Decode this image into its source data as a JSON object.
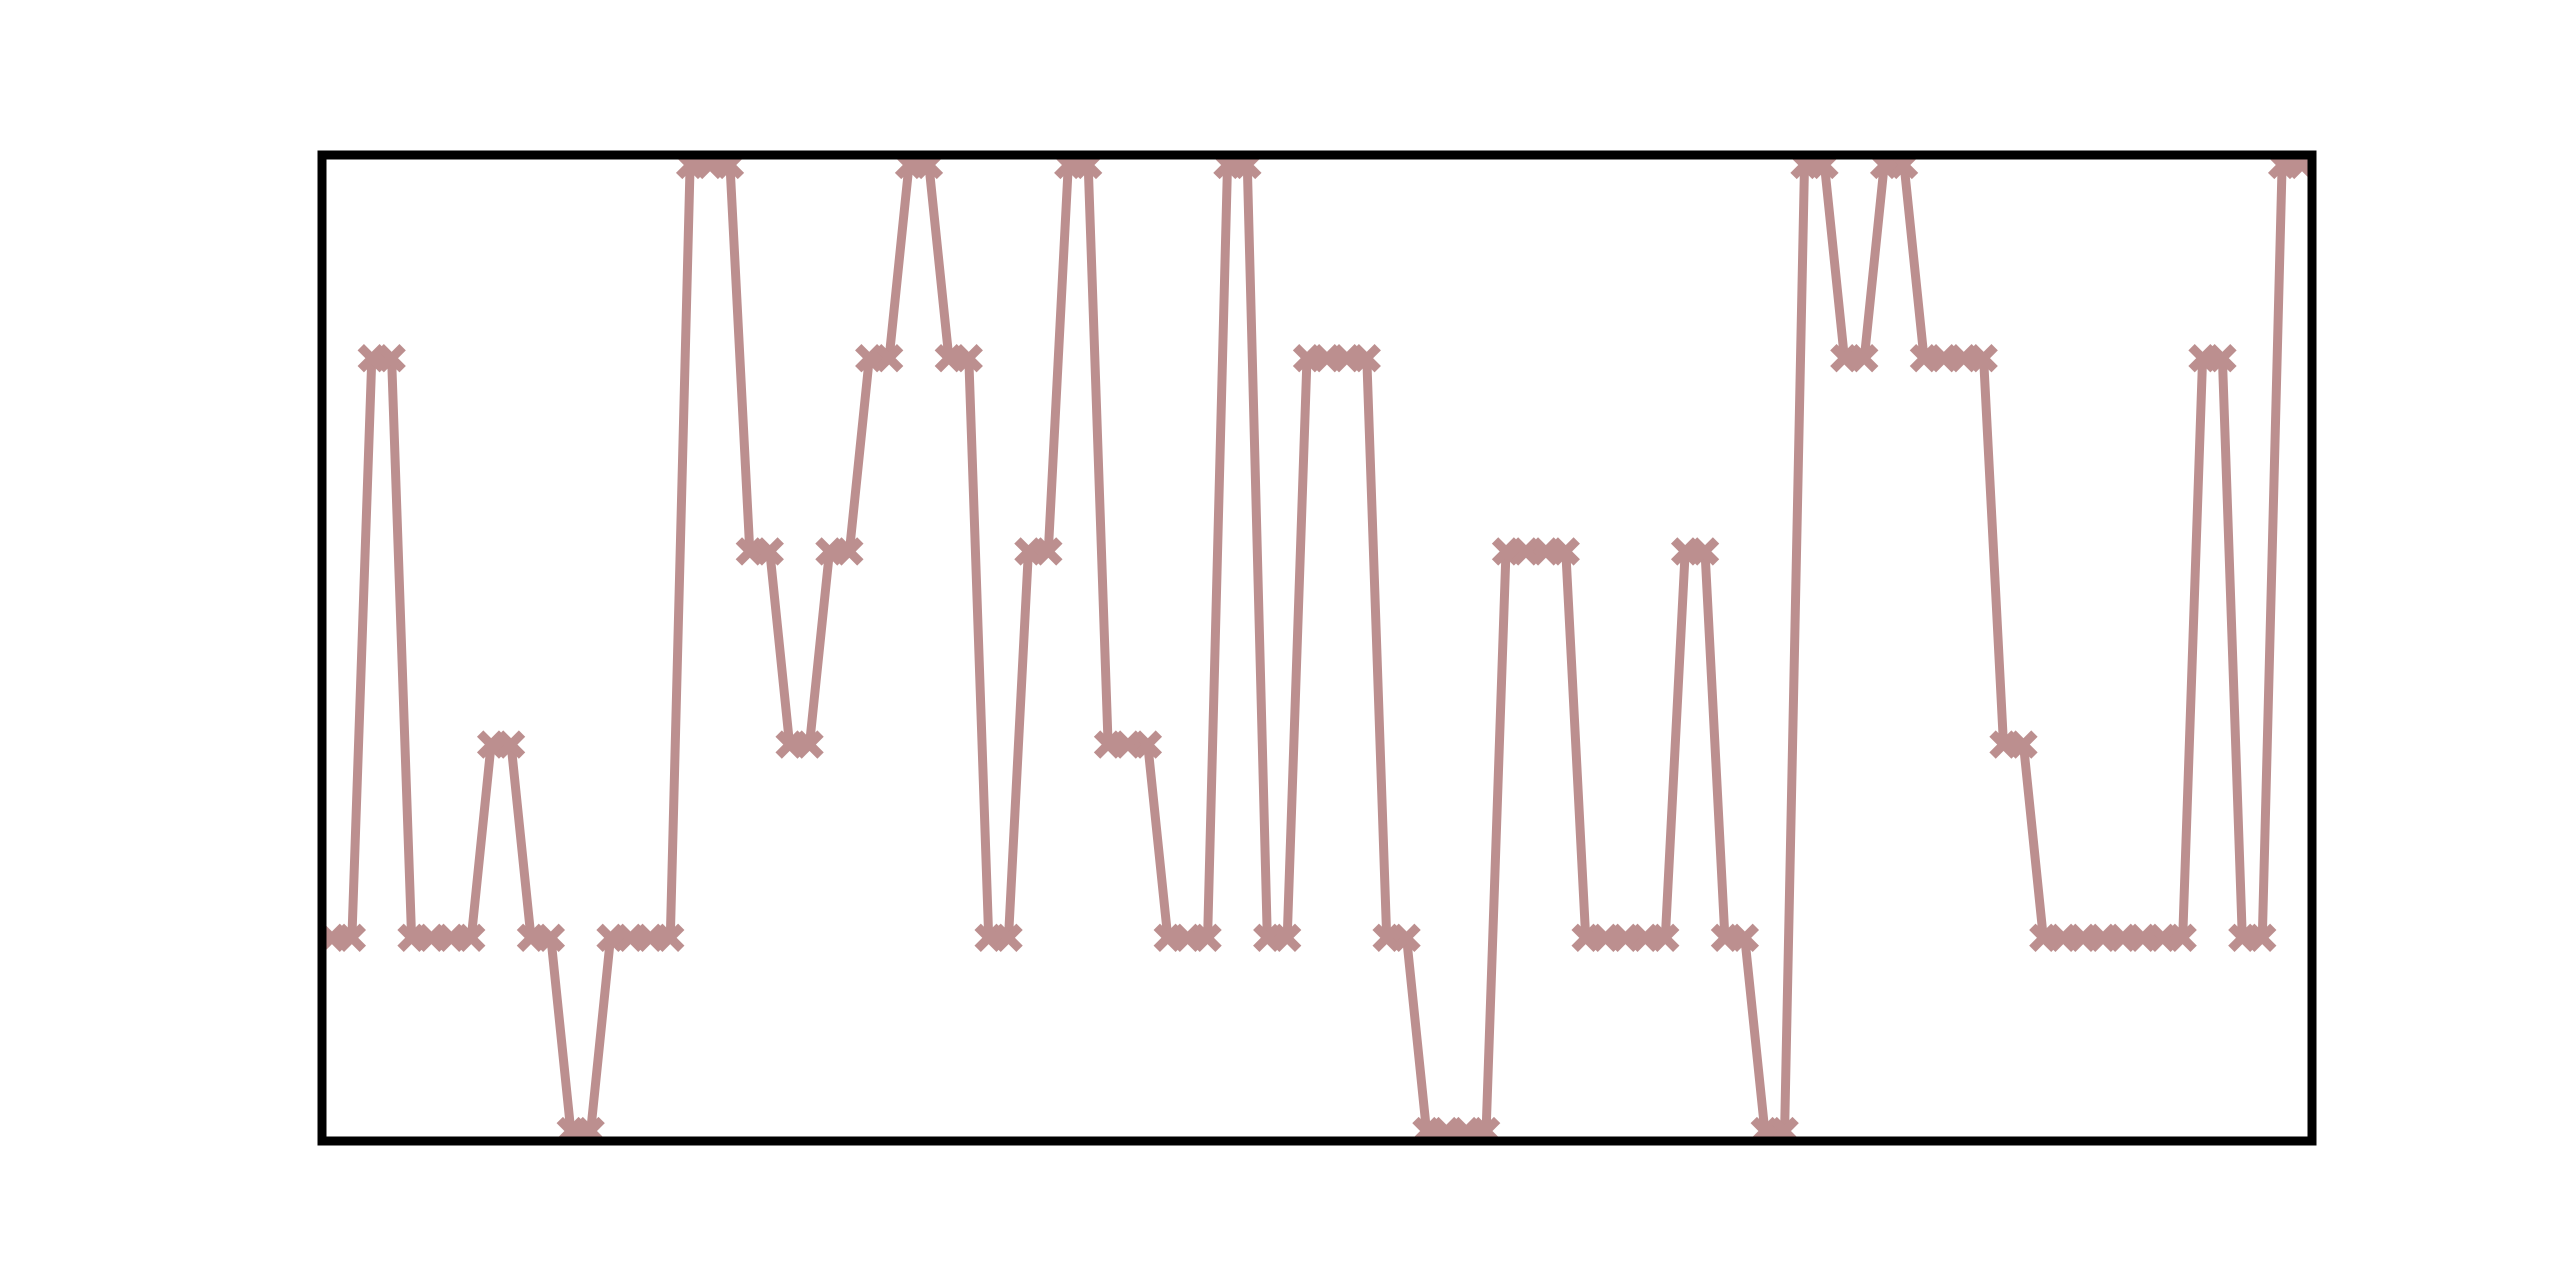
{
  "chart_data": {
    "type": "line",
    "title": "",
    "xlabel": "",
    "ylabel": "",
    "grid": false,
    "legend": "none",
    "axis_ticks": false,
    "marker": "x-cross",
    "line_color": "#bc8f8f",
    "frame_color": "#000000",
    "xlim": [
      0,
      100
    ],
    "ylim": [
      0,
      5
    ],
    "series": [
      {
        "values": [
          1,
          1,
          4,
          4,
          1,
          1,
          1,
          1,
          2,
          2,
          1,
          1,
          0,
          0,
          1,
          1,
          1,
          1,
          5,
          5,
          5,
          3,
          3,
          2,
          2,
          3,
          3,
          4,
          4,
          5,
          5,
          4,
          4,
          1,
          1,
          3,
          3,
          5,
          5,
          2,
          2,
          2,
          1,
          1,
          1,
          5,
          5,
          1,
          1,
          4,
          4,
          4,
          4,
          1,
          1,
          0,
          0,
          0,
          0,
          3,
          3,
          3,
          3,
          1,
          1,
          1,
          1,
          1,
          3,
          3,
          1,
          1,
          0,
          0,
          5,
          5,
          4,
          4,
          5,
          5,
          4,
          4,
          4,
          4,
          2,
          2,
          1,
          1,
          1,
          1,
          1,
          1,
          1,
          1,
          4,
          4,
          1,
          1,
          5,
          5
        ]
      }
    ]
  }
}
